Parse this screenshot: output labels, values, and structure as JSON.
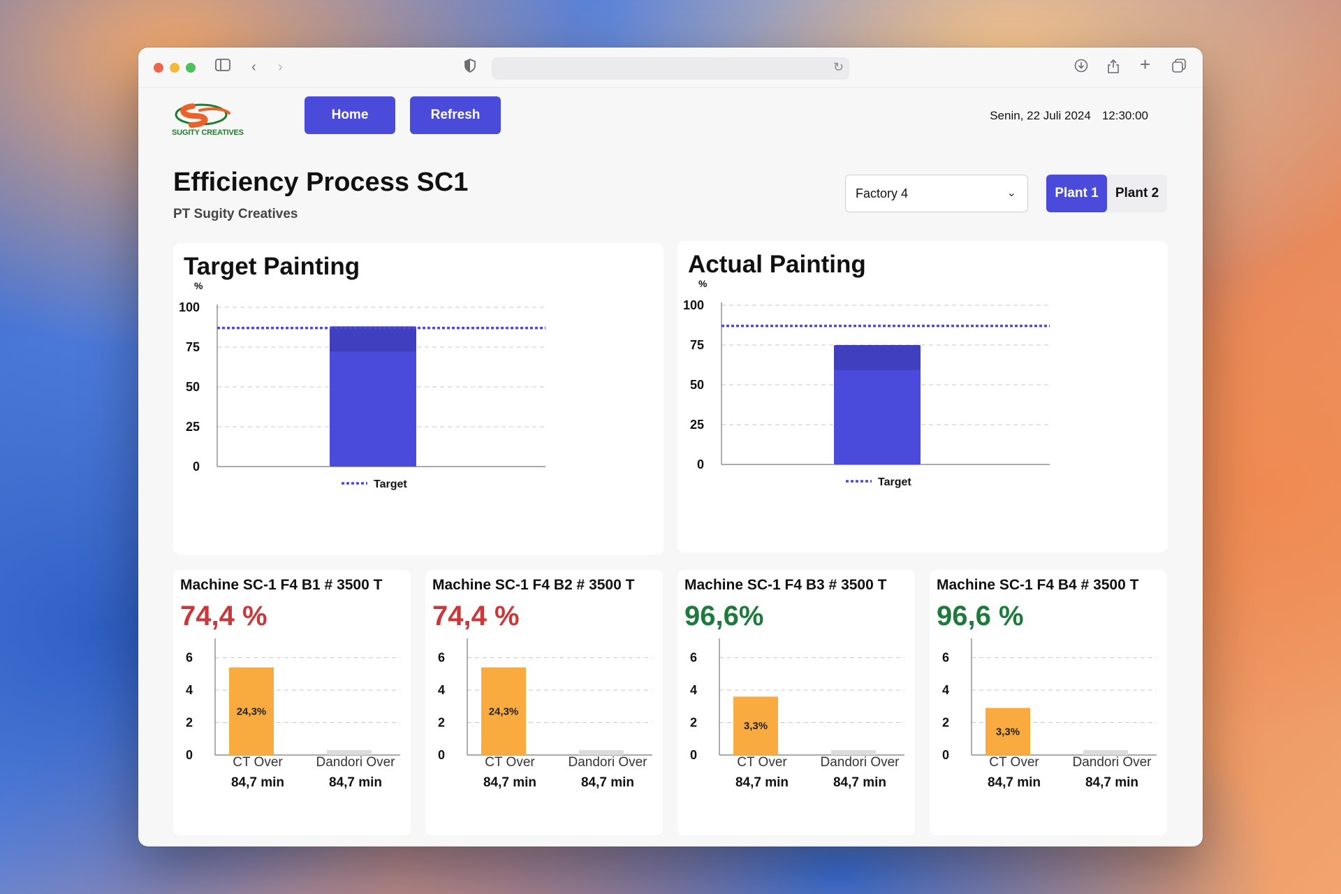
{
  "browser": {
    "url": ""
  },
  "header": {
    "logo_text": "SUGITY CREATIVES",
    "home_label": "Home",
    "refresh_label": "Refresh",
    "date": "Senin, 22 Juli 2024",
    "time": "12:30:00"
  },
  "page": {
    "title": "Efficiency Process SC1",
    "subtitle": "PT Sugity Creatives",
    "factory_selected": "Factory 4",
    "plants": [
      "Plant 1",
      "Plant 2"
    ],
    "active_plant": "Plant 1"
  },
  "colors": {
    "accent": "#4b4bdb",
    "bar_dark": "#3f3fc0",
    "orange": "#f9ab3f",
    "red": "#c9383a",
    "green": "#1d7a3c",
    "gray_bar": "#dcdcdc"
  },
  "chart_data": [
    {
      "type": "bar",
      "title": "Target Painting",
      "ylabel": "%",
      "ylim": [
        0,
        100
      ],
      "yticks": [
        0,
        25,
        50,
        75,
        100
      ],
      "categories": [
        ""
      ],
      "values": [
        88
      ],
      "target": 87,
      "legend": "Target",
      "grid": true
    },
    {
      "type": "bar",
      "title": "Actual Painting",
      "ylabel": "%",
      "ylim": [
        0,
        100
      ],
      "yticks": [
        0,
        25,
        50,
        75,
        100
      ],
      "categories": [
        ""
      ],
      "values": [
        75
      ],
      "target": 87,
      "legend": "Target",
      "grid": true
    },
    {
      "type": "bar",
      "title": "Machine SC-1 F4 B1 # 3500 T",
      "efficiency": "74,4 %",
      "status": "bad",
      "ylim": [
        0,
        6.5
      ],
      "yticks": [
        0,
        2,
        4,
        6
      ],
      "categories": [
        "CT Over",
        "Dandori Over"
      ],
      "values": [
        5.4,
        0.3
      ],
      "bar_label": "24,3%",
      "durations": [
        "84,7 min",
        "84,7 min"
      ]
    },
    {
      "type": "bar",
      "title": "Machine SC-1 F4 B2 # 3500 T",
      "efficiency": "74,4 %",
      "status": "bad",
      "ylim": [
        0,
        6.5
      ],
      "yticks": [
        0,
        2,
        4,
        6
      ],
      "categories": [
        "CT Over",
        "Dandori Over"
      ],
      "values": [
        5.4,
        0.3
      ],
      "bar_label": "24,3%",
      "durations": [
        "84,7 min",
        "84,7 min"
      ]
    },
    {
      "type": "bar",
      "title": "Machine SC-1 F4 B3 # 3500 T",
      "efficiency": "96,6%",
      "status": "good",
      "ylim": [
        0,
        6.5
      ],
      "yticks": [
        0,
        2,
        4,
        6
      ],
      "categories": [
        "CT Over",
        "Dandori Over"
      ],
      "values": [
        3.6,
        0.3
      ],
      "bar_label": "3,3%",
      "durations": [
        "84,7 min",
        "84,7 min"
      ]
    },
    {
      "type": "bar",
      "title": "Machine SC-1 F4 B4 # 3500 T",
      "efficiency": "96,6 %",
      "status": "good",
      "ylim": [
        0,
        6.5
      ],
      "yticks": [
        0,
        2,
        4,
        6
      ],
      "categories": [
        "CT Over",
        "Dandori Over"
      ],
      "values": [
        2.9,
        0.3
      ],
      "bar_label": "3,3%",
      "durations": [
        "84,7 min",
        "84,7 min"
      ]
    }
  ]
}
